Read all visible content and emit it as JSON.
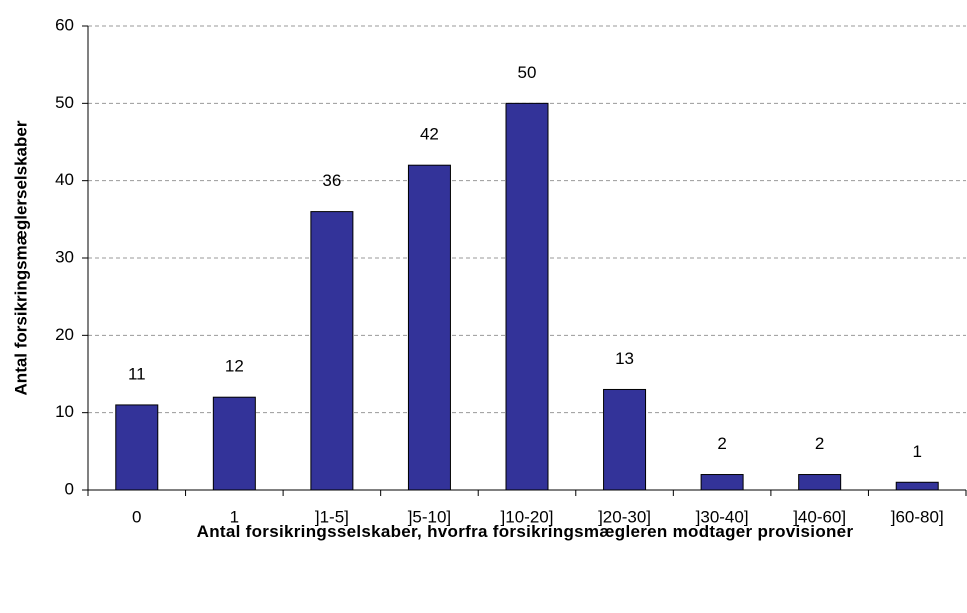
{
  "chart_data": {
    "type": "bar",
    "y_label": "Antal forsikringsmæglerselskaber",
    "x_label": "Antal forsikringsselskaber, hvorfra forsikringsmægleren modtager provisioner",
    "categories": [
      "0",
      "1",
      "]1-5]",
      "]5-10]",
      "]10-20]",
      "]20-30]",
      "]30-40]",
      "]40-60]",
      "]60-80]"
    ],
    "values": [
      11,
      12,
      36,
      42,
      50,
      13,
      2,
      2,
      1
    ],
    "color": "#333399",
    "ylim": [
      0,
      60
    ],
    "yticks": [
      0,
      10,
      20,
      30,
      40,
      50,
      60
    ],
    "grid": true
  }
}
